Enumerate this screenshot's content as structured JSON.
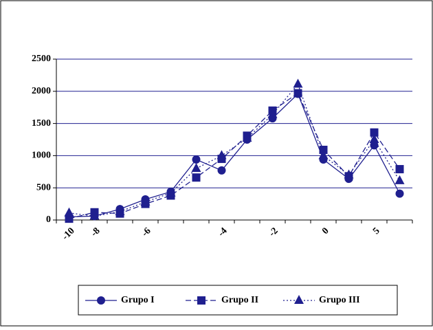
{
  "chart_data": {
    "type": "line",
    "categories": [
      "-10",
      "-8",
      null,
      "-6",
      null,
      null,
      "-4",
      null,
      "-2",
      null,
      "0",
      null,
      "5",
      null
    ],
    "series": [
      {
        "name": "Grupo I",
        "color": "#1f1f8f",
        "marker": "circle",
        "dash": "solid",
        "values": [
          50,
          60,
          170,
          320,
          440,
          940,
          770,
          1250,
          1580,
          1960,
          940,
          640,
          1160,
          410
        ]
      },
      {
        "name": "Grupo II",
        "color": "#1f1f8f",
        "marker": "square",
        "dash": "dashed",
        "values": [
          20,
          120,
          100,
          250,
          380,
          660,
          950,
          1310,
          1700,
          1970,
          1090,
          680,
          1360,
          790
        ]
      },
      {
        "name": "Grupo III",
        "color": "#1f1f8f",
        "marker": "triangle",
        "dash": "dotted",
        "values": [
          110,
          60,
          130,
          280,
          420,
          800,
          1000,
          1270,
          1640,
          2110,
          1000,
          700,
          1250,
          610
        ]
      }
    ],
    "ylim": [
      0,
      2500
    ],
    "yticks": [
      0,
      500,
      1000,
      1500,
      2000,
      2500
    ],
    "grid": true,
    "legend": "bottom"
  }
}
